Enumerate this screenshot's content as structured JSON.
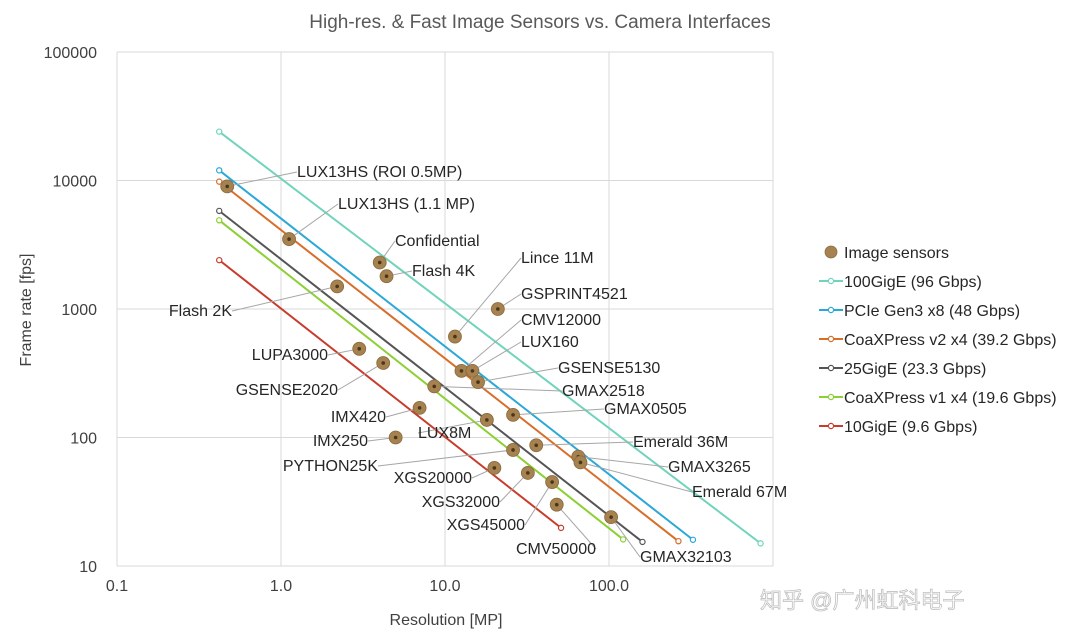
{
  "chart_data": {
    "type": "scatter",
    "title": "High-res. & Fast Image Sensors vs. Camera Interfaces",
    "xlabel": "Resolution [MP]",
    "ylabel": "Frame rate [fps]",
    "x_scale": "log",
    "y_scale": "log",
    "xlim": [
      0.1,
      1000
    ],
    "ylim": [
      10,
      100000
    ],
    "x_ticks": [
      "0.1",
      "1.0",
      "10.0",
      "100.0"
    ],
    "y_ticks": [
      "10",
      "100",
      "1000",
      "10000",
      "100000"
    ],
    "grid": true,
    "legend_position": "right",
    "series": [
      {
        "name": "Image sensors",
        "kind": "points",
        "color": "#a5824f",
        "points": [
          {
            "label": "LUX13HS (ROI 0.5MP)",
            "x": 0.47,
            "y": 9000
          },
          {
            "label": "LUX13HS (1.1 MP)",
            "x": 1.12,
            "y": 3500
          },
          {
            "label": "Confidential",
            "x": 4.0,
            "y": 2300
          },
          {
            "label": "Flash 4K",
            "x": 4.4,
            "y": 1800
          },
          {
            "label": "Flash 2K",
            "x": 2.2,
            "y": 1500
          },
          {
            "label": "Lince 11M",
            "x": 11.5,
            "y": 610
          },
          {
            "label": "GSPRINT4521",
            "x": 21,
            "y": 1000
          },
          {
            "label": "CMV12000",
            "x": 12.6,
            "y": 330
          },
          {
            "label": "LUX160",
            "x": 14.7,
            "y": 330
          },
          {
            "label": "GSENSE5130",
            "x": 15.9,
            "y": 270
          },
          {
            "label": "LUPA3000",
            "x": 3.0,
            "y": 490
          },
          {
            "label": "GSENSE2020",
            "x": 4.2,
            "y": 380
          },
          {
            "label": "GMAX2518",
            "x": 8.6,
            "y": 250
          },
          {
            "label": "IMX420",
            "x": 7.0,
            "y": 170
          },
          {
            "label": "GMAX0505",
            "x": 26,
            "y": 150
          },
          {
            "label": "LUX8M",
            "x": 18,
            "y": 137
          },
          {
            "label": "IMX250",
            "x": 5.0,
            "y": 100
          },
          {
            "label": "Emerald 36M",
            "x": 36,
            "y": 87
          },
          {
            "label": "PYTHON25K",
            "x": 26,
            "y": 80
          },
          {
            "label": "GMAX3265",
            "x": 65,
            "y": 71
          },
          {
            "label": "Emerald 67M",
            "x": 67,
            "y": 64
          },
          {
            "label": "XGS20000",
            "x": 20,
            "y": 58
          },
          {
            "label": "XGS32000",
            "x": 32,
            "y": 53
          },
          {
            "label": "XGS45000",
            "x": 45,
            "y": 45
          },
          {
            "label": "CMV50000",
            "x": 48,
            "y": 30
          },
          {
            "label": "GMAX32103",
            "x": 103,
            "y": 24
          }
        ]
      },
      {
        "name": "100GigE (96 Gbps)",
        "kind": "line",
        "color": "#70d3bb",
        "x": [
          0.42,
          840
        ],
        "y": [
          24000,
          15
        ]
      },
      {
        "name": "PCIe Gen3 x8 (48 Gbps)",
        "kind": "line",
        "color": "#2aa8d8",
        "x": [
          0.42,
          325
        ],
        "y": [
          12000,
          16
        ]
      },
      {
        "name": "CoaXPress v2 x4 (39.2 Gbps)",
        "kind": "line",
        "color": "#d86e2a",
        "x": [
          0.42,
          265
        ],
        "y": [
          9800,
          15.6
        ]
      },
      {
        "name": "25GigE (23.3 Gbps)",
        "kind": "line",
        "color": "#555555",
        "x": [
          0.42,
          160
        ],
        "y": [
          5800,
          15.4
        ]
      },
      {
        "name": "CoaXPress v1 x4 (19.6 Gbps)",
        "kind": "line",
        "color": "#8cd034",
        "x": [
          0.42,
          122
        ],
        "y": [
          4900,
          16.1
        ]
      },
      {
        "name": "10GigE (9.6 Gbps)",
        "kind": "line",
        "color": "#c83c2c",
        "x": [
          0.42,
          51
        ],
        "y": [
          2400,
          19.8
        ]
      }
    ]
  },
  "watermark": "知乎 @广州虹科电子"
}
